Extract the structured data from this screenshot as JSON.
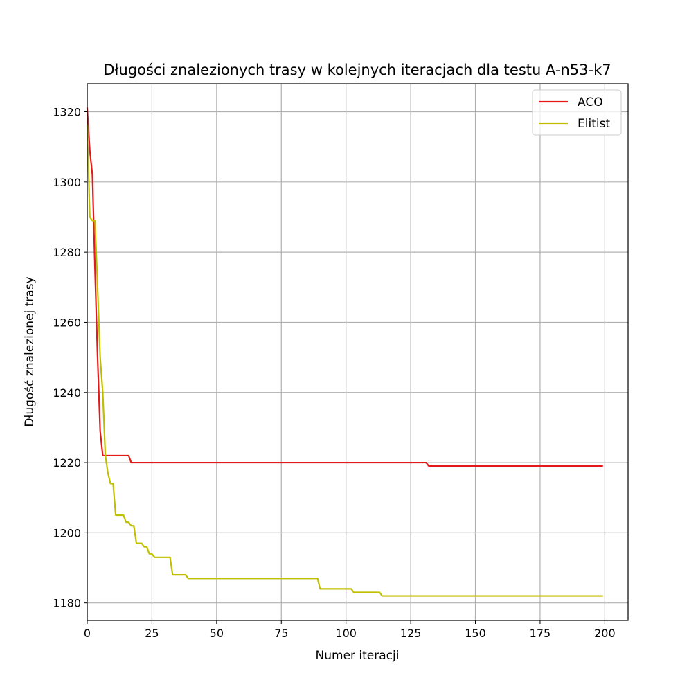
{
  "chart_data": {
    "type": "line",
    "title": "Długości znalezionych trasy w kolejnych iteracjach dla testu A-n53-k7",
    "xlabel": "Numer iteracji",
    "ylabel": "Długość znalezionej trasy",
    "xlim": [
      0,
      209
    ],
    "ylim": [
      1175,
      1328
    ],
    "xticks": [
      0,
      25,
      50,
      75,
      100,
      125,
      150,
      175,
      200
    ],
    "yticks": [
      1180,
      1200,
      1220,
      1240,
      1260,
      1280,
      1300,
      1320
    ],
    "grid": true,
    "legend_position": "top-right",
    "series": [
      {
        "name": "ACO",
        "color": "#e41a1a",
        "points": [
          [
            0,
            1321
          ],
          [
            1,
            1309
          ],
          [
            2,
            1302
          ],
          [
            3,
            1275
          ],
          [
            4,
            1250
          ],
          [
            5,
            1229
          ],
          [
            6,
            1222
          ],
          [
            16,
            1222
          ],
          [
            17,
            1220
          ],
          [
            131,
            1220
          ],
          [
            132,
            1219
          ],
          [
            199,
            1219
          ]
        ]
      },
      {
        "name": "Elitist",
        "color": "#bfbf00",
        "points": [
          [
            0,
            1316
          ],
          [
            1,
            1290
          ],
          [
            2,
            1289
          ],
          [
            3,
            1289
          ],
          [
            4,
            1270
          ],
          [
            5,
            1250
          ],
          [
            6,
            1240
          ],
          [
            7,
            1222
          ],
          [
            8,
            1217
          ],
          [
            9,
            1214
          ],
          [
            10,
            1214
          ],
          [
            11,
            1205
          ],
          [
            14,
            1205
          ],
          [
            15,
            1203
          ],
          [
            16,
            1203
          ],
          [
            17,
            1202
          ],
          [
            18,
            1202
          ],
          [
            19,
            1197
          ],
          [
            21,
            1197
          ],
          [
            22,
            1196
          ],
          [
            23,
            1196
          ],
          [
            24,
            1194
          ],
          [
            25,
            1194
          ],
          [
            26,
            1193
          ],
          [
            32,
            1193
          ],
          [
            33,
            1188
          ],
          [
            38,
            1188
          ],
          [
            39,
            1187
          ],
          [
            73,
            1187
          ],
          [
            74,
            1187
          ],
          [
            76,
            1187
          ],
          [
            77,
            1187
          ],
          [
            89,
            1187
          ],
          [
            90,
            1184
          ],
          [
            102,
            1184
          ],
          [
            103,
            1183
          ],
          [
            113,
            1183
          ],
          [
            114,
            1182
          ],
          [
            199,
            1182
          ]
        ]
      }
    ]
  }
}
